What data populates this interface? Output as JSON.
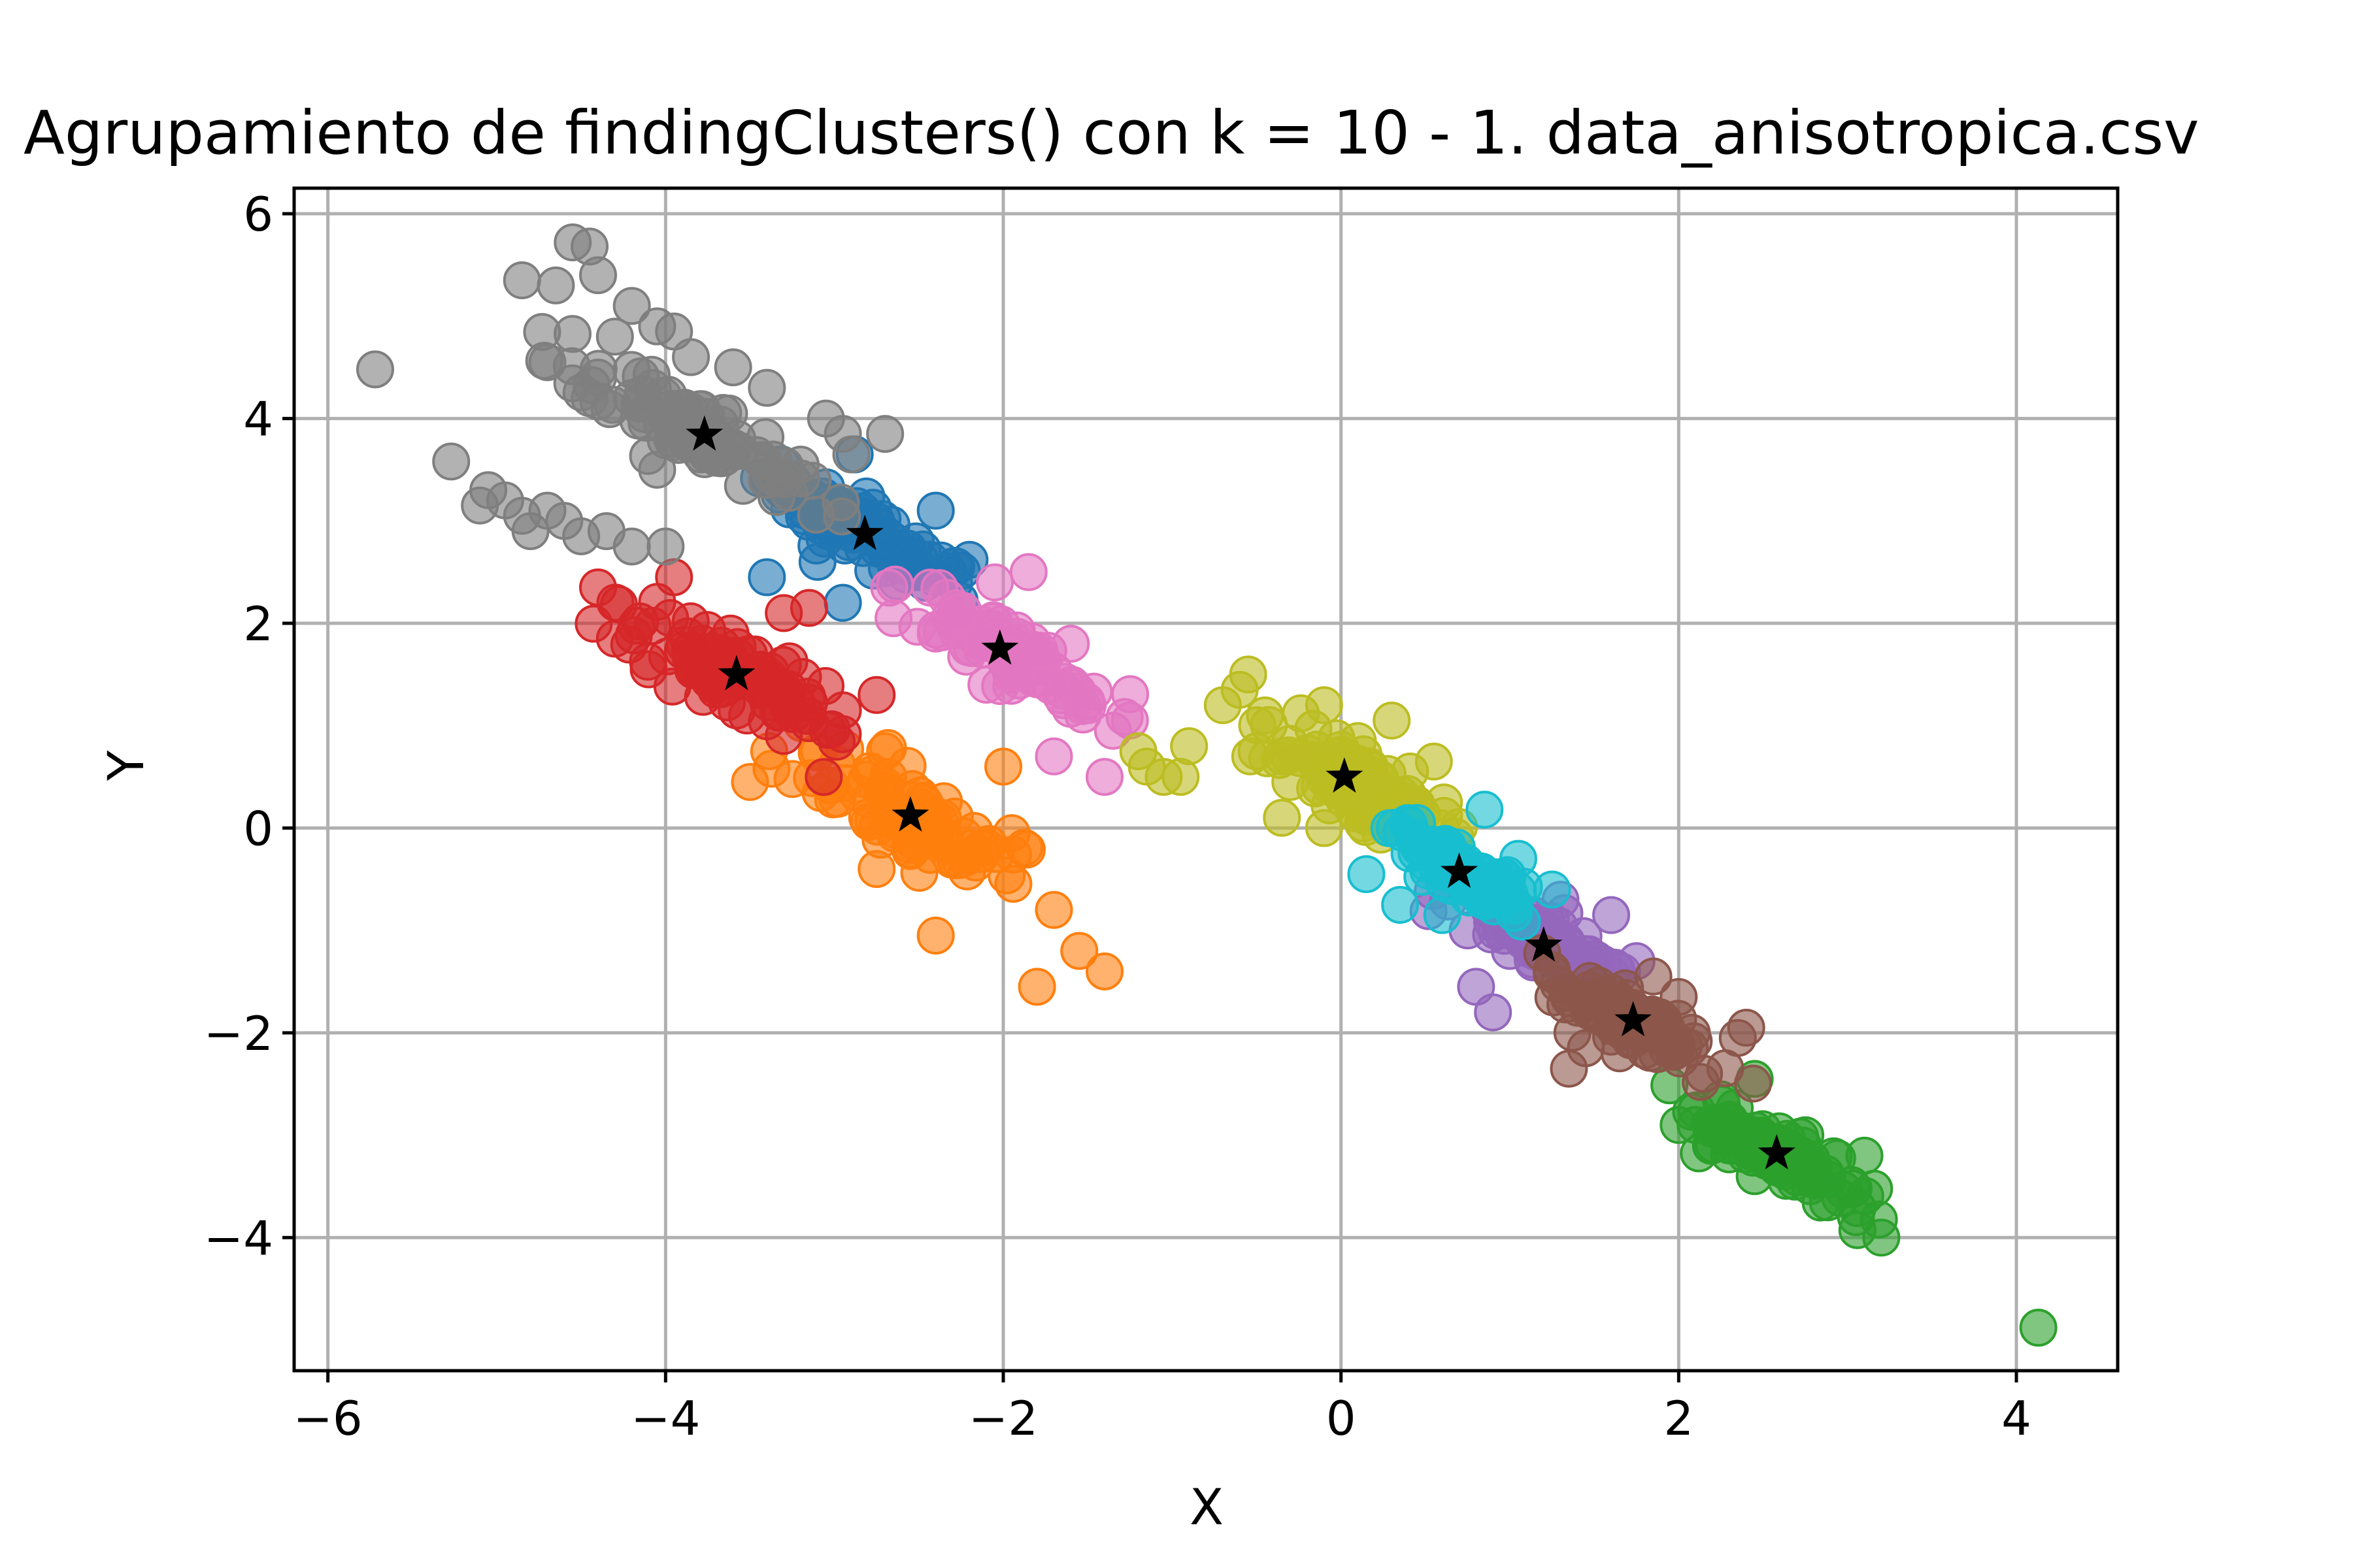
{
  "chart_data": {
    "type": "scatter",
    "title": "Agrupamiento de findingClusters() con k = 10 - 1. data_anisotropica.csv",
    "xlabel": "X",
    "ylabel": "Y",
    "xlim": [
      -6.2,
      4.6
    ],
    "ylim": [
      -5.3,
      6.25
    ],
    "xticks": [
      -6,
      -4,
      -2,
      0,
      2,
      4
    ],
    "yticks": [
      -4,
      -2,
      0,
      2,
      4,
      6
    ],
    "xtick_labels": [
      "−6",
      "−4",
      "−2",
      "0",
      "2",
      "4"
    ],
    "ytick_labels": [
      "−4",
      "−2",
      "0",
      "2",
      "4",
      "6"
    ],
    "grid": true,
    "legend": "none",
    "marker_alpha": 0.6,
    "centroid_marker": "black star",
    "clusters": [
      {
        "color": "#1f77b4",
        "centroid": [
          -2.82,
          2.87
        ],
        "spread": [
          0.38,
          0.28
        ],
        "points": [
          [
            -3.3,
            3.38
          ],
          [
            -2.88,
            3.65
          ],
          [
            -2.4,
            3.1
          ],
          [
            -2.5,
            2.5
          ],
          [
            -3.4,
            2.45
          ],
          [
            -3.1,
            2.6
          ],
          [
            -2.2,
            2.62
          ],
          [
            -2.95,
            2.2
          ]
        ]
      },
      {
        "color": "#ff7f0e",
        "centroid": [
          -2.55,
          0.12
        ],
        "spread": [
          0.45,
          0.45
        ],
        "points": [
          [
            -3.5,
            0.45
          ],
          [
            -2.0,
            0.6
          ],
          [
            -2.75,
            -0.4
          ],
          [
            -2.4,
            -1.05
          ],
          [
            -1.95,
            -0.05
          ],
          [
            -1.7,
            -0.8
          ],
          [
            -1.55,
            -1.2
          ],
          [
            -1.4,
            -1.4
          ],
          [
            -1.8,
            -1.55
          ],
          [
            -2.7,
            0.75
          ]
        ]
      },
      {
        "color": "#2ca02c",
        "centroid": [
          2.58,
          -3.18
        ],
        "spread": [
          0.3,
          0.25
        ],
        "points": [
          [
            2.0,
            -2.9
          ],
          [
            2.25,
            -2.65
          ],
          [
            2.45,
            -2.45
          ],
          [
            2.3,
            -2.85
          ],
          [
            2.45,
            -3.4
          ],
          [
            2.75,
            -3.0
          ],
          [
            3.1,
            -3.2
          ],
          [
            3.05,
            -3.8
          ],
          [
            3.2,
            -4.0
          ],
          [
            4.13,
            -4.88
          ],
          [
            2.1,
            -2.9
          ],
          [
            2.3,
            -3.1
          ]
        ]
      },
      {
        "color": "#d62728",
        "centroid": [
          -3.58,
          1.5
        ],
        "spread": [
          0.45,
          0.35
        ],
        "points": [
          [
            -4.4,
            2.35
          ],
          [
            -3.95,
            2.45
          ],
          [
            -3.3,
            2.1
          ],
          [
            -3.15,
            2.15
          ],
          [
            -4.1,
            1.55
          ],
          [
            -3.7,
            1.35
          ],
          [
            -3.3,
            0.9
          ],
          [
            -2.75,
            1.3
          ],
          [
            -2.95,
            1.15
          ],
          [
            -4.3,
            1.85
          ]
        ]
      },
      {
        "color": "#9467bd",
        "centroid": [
          1.2,
          -1.15
        ],
        "spread": [
          0.3,
          0.25
        ],
        "points": [
          [
            0.75,
            -1.0
          ],
          [
            0.8,
            -1.55
          ],
          [
            0.9,
            -1.8
          ],
          [
            1.6,
            -0.85
          ],
          [
            1.75,
            -1.3
          ],
          [
            1.5,
            -1.55
          ],
          [
            1.0,
            -1.2
          ],
          [
            1.3,
            -0.7
          ]
        ]
      },
      {
        "color": "#8c564b",
        "centroid": [
          1.73,
          -1.88
        ],
        "spread": [
          0.28,
          0.22
        ],
        "points": [
          [
            1.35,
            -2.35
          ],
          [
            1.45,
            -2.15
          ],
          [
            1.85,
            -1.45
          ],
          [
            2.15,
            -2.4
          ],
          [
            2.35,
            -2.05
          ],
          [
            2.4,
            -1.95
          ],
          [
            1.65,
            -2.2
          ],
          [
            2.0,
            -1.65
          ]
        ]
      },
      {
        "color": "#e377c2",
        "centroid": [
          -2.02,
          1.75
        ],
        "spread": [
          0.4,
          0.3
        ],
        "points": [
          [
            -2.65,
            2.05
          ],
          [
            -2.05,
            2.4
          ],
          [
            -1.85,
            2.5
          ],
          [
            -1.6,
            1.8
          ],
          [
            -1.5,
            1.2
          ],
          [
            -1.25,
            1.05
          ],
          [
            -1.4,
            0.5
          ],
          [
            -1.7,
            0.7
          ],
          [
            -2.1,
            1.4
          ],
          [
            -2.4,
            1.9
          ],
          [
            -1.35,
            0.95
          ]
        ]
      },
      {
        "color": "#7f7f7f",
        "centroid": [
          -3.77,
          3.84
        ],
        "spread": [
          0.45,
          0.35
        ],
        "points": [
          [
            -5.72,
            4.48
          ],
          [
            -5.27,
            3.58
          ],
          [
            -5.05,
            3.3
          ],
          [
            -5.1,
            3.15
          ],
          [
            -4.95,
            3.2
          ],
          [
            -4.85,
            3.05
          ],
          [
            -4.7,
            3.1
          ],
          [
            -4.8,
            2.9
          ],
          [
            -4.6,
            3.0
          ],
          [
            -4.5,
            2.85
          ],
          [
            -4.35,
            2.9
          ],
          [
            -4.2,
            2.75
          ],
          [
            -4.0,
            2.75
          ],
          [
            -4.55,
            5.72
          ],
          [
            -4.45,
            5.68
          ],
          [
            -4.85,
            5.35
          ],
          [
            -4.65,
            5.3
          ],
          [
            -4.4,
            5.4
          ],
          [
            -4.2,
            5.1
          ],
          [
            -4.05,
            4.9
          ],
          [
            -3.95,
            4.85
          ],
          [
            -4.3,
            4.8
          ],
          [
            -4.7,
            4.55
          ],
          [
            -4.4,
            4.4
          ],
          [
            -4.45,
            4.2
          ],
          [
            -3.85,
            4.6
          ],
          [
            -3.6,
            4.5
          ],
          [
            -3.4,
            4.3
          ],
          [
            -3.05,
            4.0
          ],
          [
            -2.95,
            3.85
          ],
          [
            -2.7,
            3.85
          ],
          [
            -2.9,
            3.65
          ],
          [
            -3.2,
            3.55
          ],
          [
            -3.4,
            3.4
          ],
          [
            -4.05,
            3.5
          ],
          [
            -4.2,
            4.2
          ],
          [
            -3.9,
            4.1
          ]
        ]
      },
      {
        "color": "#bcbd22",
        "centroid": [
          0.02,
          0.5
        ],
        "spread": [
          0.35,
          0.35
        ],
        "points": [
          [
            -1.2,
            0.75
          ],
          [
            -1.05,
            0.5
          ],
          [
            -0.95,
            0.5
          ],
          [
            -1.15,
            0.6
          ],
          [
            -0.9,
            0.8
          ],
          [
            -0.7,
            1.2
          ],
          [
            -0.6,
            1.35
          ],
          [
            -0.55,
            1.5
          ],
          [
            -0.45,
            1.1
          ],
          [
            -0.5,
            0.75
          ],
          [
            -0.3,
            0.45
          ],
          [
            -0.35,
            0.1
          ],
          [
            -0.1,
            0.0
          ],
          [
            0.3,
            1.05
          ],
          [
            0.55,
            0.65
          ],
          [
            0.45,
            0.2
          ],
          [
            -0.1,
            1.2
          ],
          [
            0.1,
            0.85
          ]
        ]
      },
      {
        "color": "#17becf",
        "centroid": [
          0.7,
          -0.43
        ],
        "spread": [
          0.25,
          0.22
        ],
        "points": [
          [
            0.15,
            -0.45
          ],
          [
            0.35,
            -0.75
          ],
          [
            0.85,
            0.18
          ],
          [
            1.25,
            -0.6
          ],
          [
            0.6,
            -0.85
          ],
          [
            0.45,
            0.05
          ],
          [
            1.05,
            -0.3
          ]
        ]
      }
    ]
  }
}
